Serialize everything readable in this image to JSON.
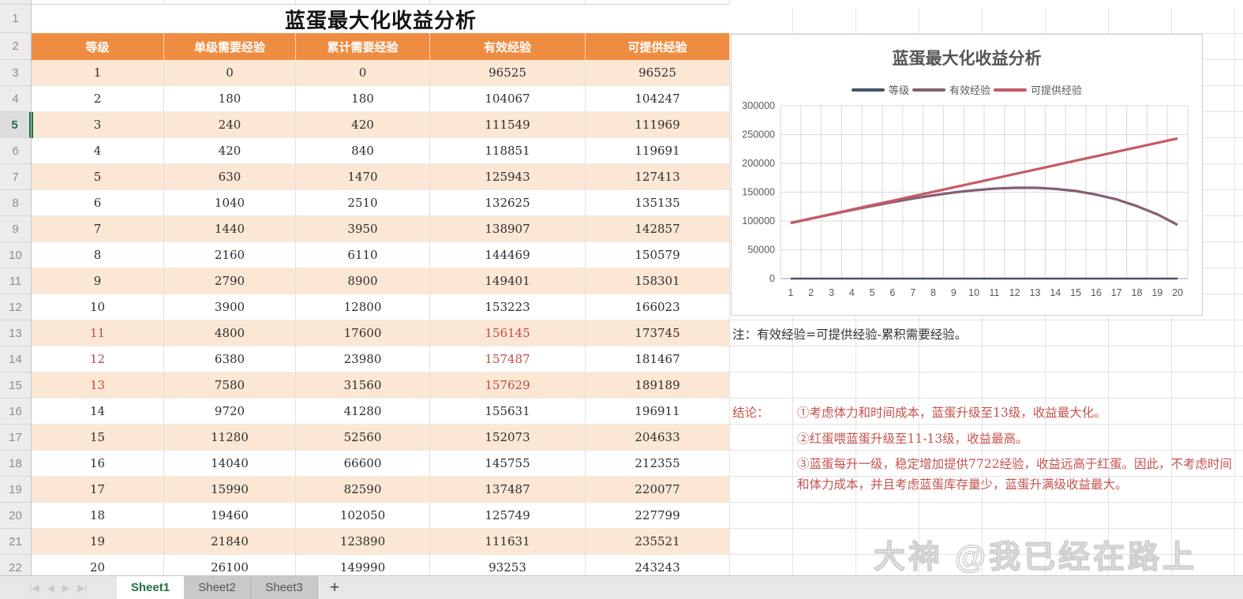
{
  "title": "蓝蛋最大化收益分析",
  "spreadsheet": {
    "row_numbers": [
      "1",
      "2",
      "3",
      "4",
      "5",
      "6",
      "7",
      "8",
      "9",
      "10",
      "11",
      "12",
      "13",
      "14",
      "15",
      "16",
      "17",
      "18",
      "19",
      "20",
      "21",
      "22"
    ],
    "selected_row": 5
  },
  "table": {
    "headers": [
      "等级",
      "单级需要经验",
      "累计需要经验",
      "有效经验",
      "可提供经验"
    ],
    "rows": [
      {
        "level": "1",
        "per": "0",
        "cum": "0",
        "eff": "96525",
        "prov": "96525",
        "red": false
      },
      {
        "level": "2",
        "per": "180",
        "cum": "180",
        "eff": "104067",
        "prov": "104247",
        "red": false
      },
      {
        "level": "3",
        "per": "240",
        "cum": "420",
        "eff": "111549",
        "prov": "111969",
        "red": false
      },
      {
        "level": "4",
        "per": "420",
        "cum": "840",
        "eff": "118851",
        "prov": "119691",
        "red": false
      },
      {
        "level": "5",
        "per": "630",
        "cum": "1470",
        "eff": "125943",
        "prov": "127413",
        "red": false
      },
      {
        "level": "6",
        "per": "1040",
        "cum": "2510",
        "eff": "132625",
        "prov": "135135",
        "red": false
      },
      {
        "level": "7",
        "per": "1440",
        "cum": "3950",
        "eff": "138907",
        "prov": "142857",
        "red": false
      },
      {
        "level": "8",
        "per": "2160",
        "cum": "6110",
        "eff": "144469",
        "prov": "150579",
        "red": false
      },
      {
        "level": "9",
        "per": "2790",
        "cum": "8900",
        "eff": "149401",
        "prov": "158301",
        "red": false
      },
      {
        "level": "10",
        "per": "3900",
        "cum": "12800",
        "eff": "153223",
        "prov": "166023",
        "red": false
      },
      {
        "level": "11",
        "per": "4800",
        "cum": "17600",
        "eff": "156145",
        "prov": "173745",
        "red": true
      },
      {
        "level": "12",
        "per": "6380",
        "cum": "23980",
        "eff": "157487",
        "prov": "181467",
        "red": true
      },
      {
        "level": "13",
        "per": "7580",
        "cum": "31560",
        "eff": "157629",
        "prov": "189189",
        "red": true
      },
      {
        "level": "14",
        "per": "9720",
        "cum": "41280",
        "eff": "155631",
        "prov": "196911",
        "red": false
      },
      {
        "level": "15",
        "per": "11280",
        "cum": "52560",
        "eff": "152073",
        "prov": "204633",
        "red": false
      },
      {
        "level": "16",
        "per": "14040",
        "cum": "66600",
        "eff": "145755",
        "prov": "212355",
        "red": false
      },
      {
        "level": "17",
        "per": "15990",
        "cum": "82590",
        "eff": "137487",
        "prov": "220077",
        "red": false
      },
      {
        "level": "18",
        "per": "19460",
        "cum": "102050",
        "eff": "125749",
        "prov": "227799",
        "red": false
      },
      {
        "level": "19",
        "per": "21840",
        "cum": "123890",
        "eff": "111631",
        "prov": "235521",
        "red": false
      },
      {
        "level": "20",
        "per": "26100",
        "cum": "149990",
        "eff": "93253",
        "prov": "243243",
        "red": false
      }
    ]
  },
  "chart_data": {
    "type": "line",
    "title": "蓝蛋最大化收益分析",
    "x": [
      1,
      2,
      3,
      4,
      5,
      6,
      7,
      8,
      9,
      10,
      11,
      12,
      13,
      14,
      15,
      16,
      17,
      18,
      19,
      20
    ],
    "series": [
      {
        "name": "等级",
        "color": "#44546A",
        "values": [
          1,
          2,
          3,
          4,
          5,
          6,
          7,
          8,
          9,
          10,
          11,
          12,
          13,
          14,
          15,
          16,
          17,
          18,
          19,
          20
        ]
      },
      {
        "name": "有效经验",
        "color": "#855F74",
        "values": [
          96525,
          104067,
          111549,
          118851,
          125943,
          132625,
          138907,
          144469,
          149401,
          153223,
          156145,
          157487,
          157629,
          155631,
          152073,
          145755,
          137487,
          125749,
          111631,
          93253
        ]
      },
      {
        "name": "可提供经验",
        "color": "#C55A66",
        "values": [
          96525,
          104247,
          111969,
          119691,
          127413,
          135135,
          142857,
          150579,
          158301,
          166023,
          173745,
          181467,
          189189,
          196911,
          204633,
          212355,
          220077,
          227799,
          235521,
          243243
        ]
      }
    ],
    "ylim": [
      0,
      300000
    ],
    "ytick_step": 50000,
    "ytick_labels": [
      "0",
      "50000",
      "100000",
      "150000",
      "200000",
      "250000",
      "300000"
    ],
    "xlabel": "",
    "ylabel": "",
    "legend_position": "top",
    "grid": true
  },
  "notes": {
    "formula_note": "注：有效经验=可提供经验-累积需要经验。",
    "conclusion_label": "结论：",
    "conclusions": [
      "①考虑体力和时间成本，蓝蛋升级至13级，收益最大化。",
      "②红蛋喂蓝蛋升级至11-13级，收益最高。",
      "③蓝蛋每升一级，稳定增加提供7722经验，收益远高于红蛋。因此，不考虑时间和体力成本，并且考虑蓝蛋库存量少，蓝蛋升满级收益最大。"
    ]
  },
  "tabbar": {
    "nav_icons": [
      "|◀",
      "◀",
      "▶",
      "▶|"
    ],
    "sheets": [
      "Sheet1",
      "Sheet2",
      "Sheet3"
    ],
    "active_sheet": "Sheet1",
    "add_label": "+",
    "scroll_left_arrow": "◀"
  },
  "watermark": "大神 @我已经在路上",
  "colors": {
    "header_orange": "#EE8D42",
    "row_peach": "#FBE7D4",
    "red_value": "#BE4B48",
    "conclusion_red": "#C5524E",
    "active_tab_green": "#217346",
    "grid_line": "#D9D9D9",
    "axis_label": "#595959"
  }
}
